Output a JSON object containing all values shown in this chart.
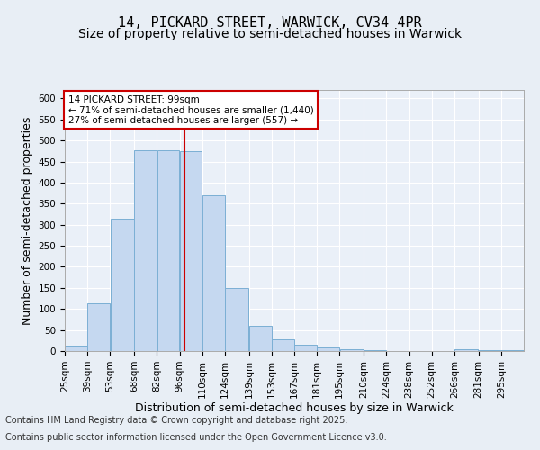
{
  "title_line1": "14, PICKARD STREET, WARWICK, CV34 4PR",
  "title_line2": "Size of property relative to semi-detached houses in Warwick",
  "xlabel": "Distribution of semi-detached houses by size in Warwick",
  "ylabel": "Number of semi-detached properties",
  "annotation_title": "14 PICKARD STREET: 99sqm",
  "annotation_line2": "← 71% of semi-detached houses are smaller (1,440)",
  "annotation_line3": "27% of semi-detached houses are larger (557) →",
  "footer_line1": "Contains HM Land Registry data © Crown copyright and database right 2025.",
  "footer_line2": "Contains public sector information licensed under the Open Government Licence v3.0.",
  "property_size": 99,
  "bin_edges": [
    25,
    39,
    53,
    68,
    82,
    96,
    110,
    124,
    139,
    153,
    167,
    181,
    195,
    210,
    224,
    238,
    252,
    266,
    281,
    295,
    309
  ],
  "bin_labels": [
    "25sqm",
    "39sqm",
    "53sqm",
    "68sqm",
    "82sqm",
    "96sqm",
    "110sqm",
    "124sqm",
    "139sqm",
    "153sqm",
    "167sqm",
    "181sqm",
    "195sqm",
    "210sqm",
    "224sqm",
    "238sqm",
    "252sqm",
    "266sqm",
    "281sqm",
    "295sqm"
  ],
  "counts": [
    12,
    113,
    315,
    477,
    476,
    474,
    370,
    150,
    60,
    28,
    14,
    9,
    4,
    2,
    1,
    1,
    0,
    5,
    2,
    2
  ],
  "bar_color": "#c5d8f0",
  "bar_edge_color": "#7bafd4",
  "vline_color": "#cc0000",
  "vline_x": 99,
  "annotation_box_color": "#cc0000",
  "ylim": [
    0,
    620
  ],
  "yticks": [
    0,
    50,
    100,
    150,
    200,
    250,
    300,
    350,
    400,
    450,
    500,
    550,
    600
  ],
  "bg_color": "#e8eef5",
  "plot_bg_color": "#eaf0f8",
  "grid_color": "#ffffff",
  "title_fontsize": 11,
  "subtitle_fontsize": 10,
  "axis_label_fontsize": 9,
  "tick_fontsize": 7.5,
  "footer_fontsize": 7
}
